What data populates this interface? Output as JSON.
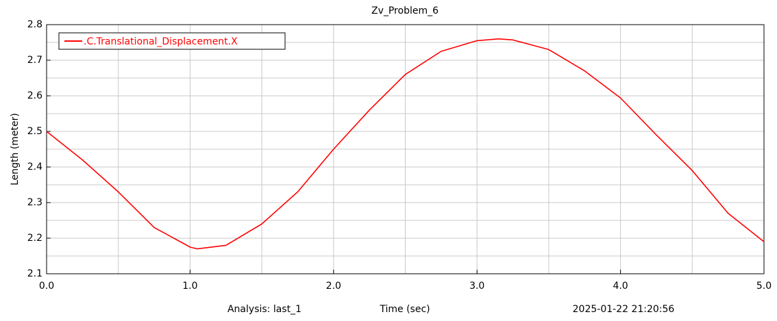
{
  "chart_data": {
    "type": "line",
    "title": "Zv_Problem_6",
    "x_label": "Time (sec)",
    "y_label": "Length (meter)",
    "footer_left": "Analysis:  last_1",
    "footer_right": "2025-01-22 21:20:56",
    "x": [
      0,
      0.25,
      0.5,
      0.75,
      1.0,
      1.05,
      1.25,
      1.5,
      1.75,
      2.0,
      2.25,
      2.5,
      2.75,
      3.0,
      3.15,
      3.25,
      3.5,
      3.75,
      4.0,
      4.25,
      4.5,
      4.75,
      5.0
    ],
    "series": [
      {
        "name": ".C.Translational_Displacement.X",
        "color": "#ff0000",
        "values": [
          2.5,
          2.42,
          2.33,
          2.23,
          2.175,
          2.17,
          2.18,
          2.24,
          2.33,
          2.45,
          2.56,
          2.66,
          2.725,
          2.755,
          2.76,
          2.757,
          2.73,
          2.67,
          2.594,
          2.49,
          2.39,
          2.27,
          2.19
        ]
      }
    ],
    "xlim": [
      0,
      5
    ],
    "ylim": [
      2.1,
      2.8
    ],
    "xticks": [
      {
        "value": 0,
        "label": "0.0"
      },
      {
        "value": 1,
        "label": "1.0"
      },
      {
        "value": 2,
        "label": "2.0"
      },
      {
        "value": 3,
        "label": "3.0"
      },
      {
        "value": 4,
        "label": "4.0"
      },
      {
        "value": 5,
        "label": "5.0"
      }
    ],
    "yticks": [
      2.1,
      2.2,
      2.3,
      2.4,
      2.5,
      2.6,
      2.7,
      2.8
    ],
    "grid": true,
    "legend": "top-left"
  }
}
